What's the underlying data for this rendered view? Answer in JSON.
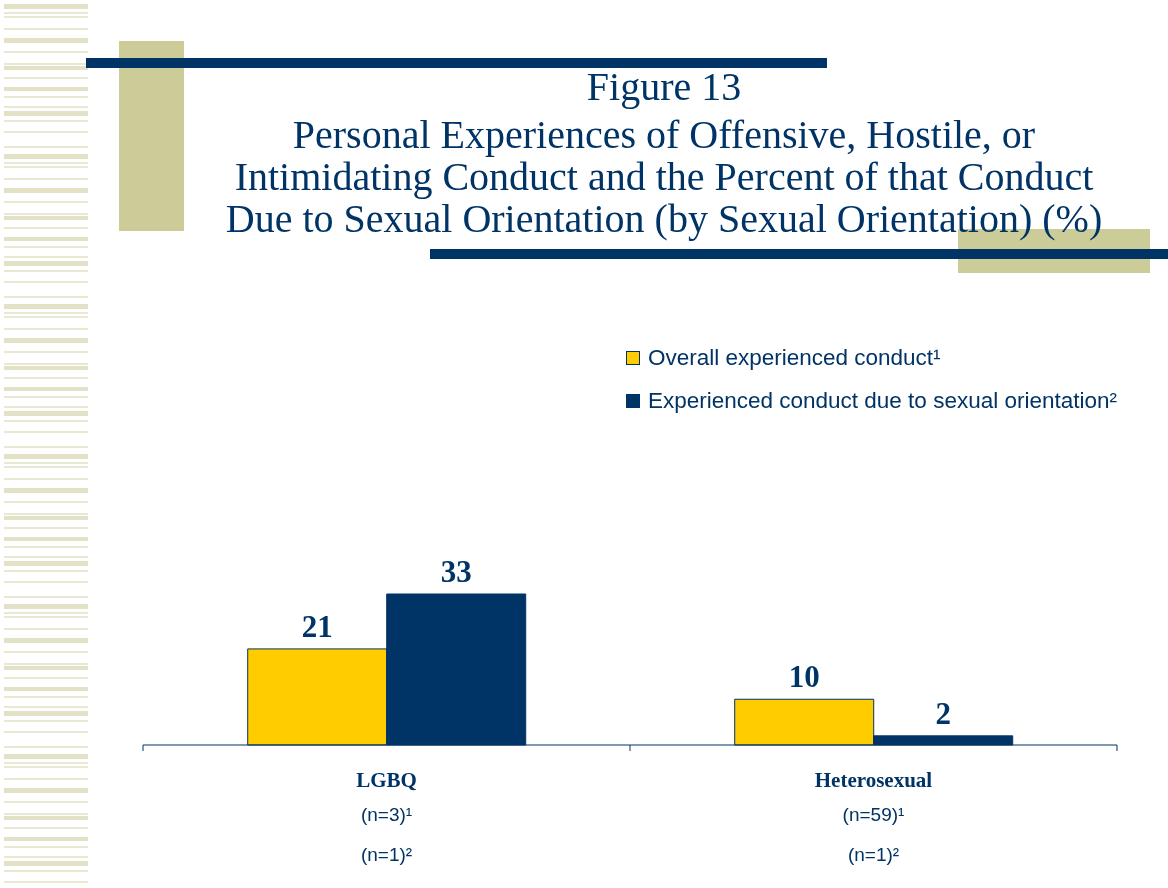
{
  "chart_data": {
    "type": "bar",
    "title": "Figure 13",
    "subtitle": "Personal Experiences of Offensive, Hostile, or Intimidating Conduct and the Percent of that Conduct Due to Sexual Orientation (by Sexual Orientation) (%)",
    "categories": [
      "LGBQ\n(n=3)¹\n(n=1)²",
      "Heterosexual\n(n=59)¹\n(n=1)²"
    ],
    "series": [
      {
        "name": "Overall experienced conduct¹",
        "color": "#ffcc00",
        "values": [
          21,
          10
        ]
      },
      {
        "name": "Experienced conduct due to sexual orientation²",
        "color": "#003366",
        "values": [
          33,
          2
        ]
      }
    ],
    "data_labels": true,
    "legend": "top right",
    "tick_labels": "x"
  }
}
